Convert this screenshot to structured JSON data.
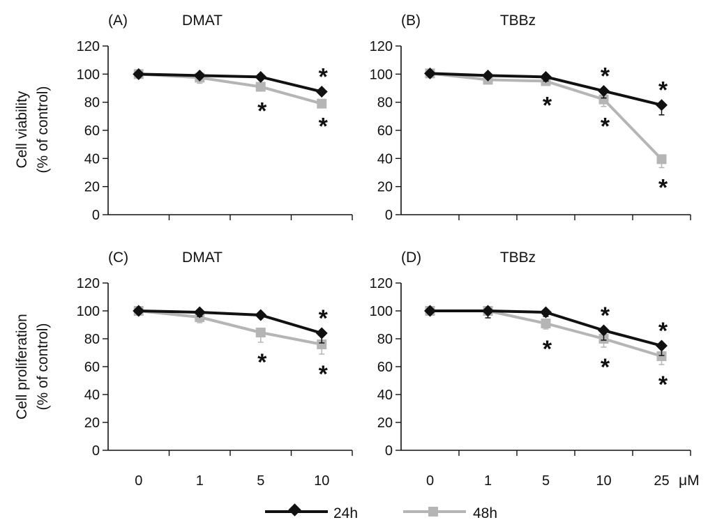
{
  "figure": {
    "y_axis_label_top": [
      "Cell viability",
      "(% of control)"
    ],
    "y_axis_label_bottom": [
      "Cell proliferation",
      "(% of control)"
    ],
    "x_unit": "μM",
    "legend": [
      "24h",
      "48h"
    ],
    "colors": {
      "24h": "#111111",
      "48h": "#b5b5b5"
    }
  },
  "chart_data": [
    {
      "panel": "(A)",
      "title": "DMAT",
      "type": "line",
      "categories": [
        "0",
        "1",
        "5",
        "10"
      ],
      "ylim": [
        0,
        120
      ],
      "yticks": [
        "0",
        "20",
        "40",
        "60",
        "80",
        "100",
        "120"
      ],
      "series": [
        {
          "name": "24h",
          "values": [
            100,
            99,
            98,
            87.5
          ],
          "errors": [
            0,
            2,
            2,
            1
          ],
          "stars": [
            "",
            "",
            "",
            "*"
          ]
        },
        {
          "name": "48h",
          "values": [
            100,
            97.5,
            91,
            79
          ],
          "errors": [
            0,
            4,
            3,
            2
          ],
          "stars": [
            "",
            "",
            "*",
            "*"
          ]
        }
      ]
    },
    {
      "panel": "(B)",
      "title": "TBBz",
      "type": "line",
      "categories": [
        "0",
        "1",
        "5",
        "10",
        "25"
      ],
      "ylim": [
        0,
        120
      ],
      "yticks": [
        "0",
        "20",
        "40",
        "60",
        "80",
        "100",
        "120"
      ],
      "series": [
        {
          "name": "24h",
          "values": [
            100.5,
            99,
            98,
            88,
            78
          ],
          "errors": [
            0,
            2,
            3,
            5,
            7
          ],
          "stars": [
            "",
            "",
            "",
            "*",
            "*"
          ]
        },
        {
          "name": "48h",
          "values": [
            100.5,
            96,
            95,
            82,
            39.5
          ],
          "errors": [
            0,
            3,
            3,
            5,
            6
          ],
          "stars": [
            "",
            "",
            "*",
            "*",
            "*"
          ]
        }
      ]
    },
    {
      "panel": "(C)",
      "title": "DMAT",
      "type": "line",
      "categories": [
        "0",
        "1",
        "5",
        "10"
      ],
      "ylim": [
        0,
        120
      ],
      "yticks": [
        "0",
        "20",
        "40",
        "60",
        "80",
        "100",
        "120"
      ],
      "series": [
        {
          "name": "24h",
          "values": [
            100,
            99,
            97,
            84
          ],
          "errors": [
            0,
            3,
            2,
            7
          ],
          "stars": [
            "",
            "",
            "",
            "*"
          ]
        },
        {
          "name": "48h",
          "values": [
            100,
            95.5,
            84.5,
            76
          ],
          "errors": [
            0,
            4,
            7,
            7
          ],
          "stars": [
            "",
            "",
            "*",
            "*"
          ]
        }
      ]
    },
    {
      "panel": "(D)",
      "title": "TBBz",
      "type": "line",
      "categories": [
        "0",
        "1",
        "5",
        "10",
        "25"
      ],
      "ylim": [
        0,
        120
      ],
      "yticks": [
        "0",
        "20",
        "40",
        "60",
        "80",
        "100",
        "120"
      ],
      "series": [
        {
          "name": "24h",
          "values": [
            100,
            100,
            99,
            86,
            75
          ],
          "errors": [
            0,
            5,
            3,
            7,
            7
          ],
          "stars": [
            "",
            "",
            "",
            "*",
            "*"
          ]
        },
        {
          "name": "48h",
          "values": [
            100,
            100,
            91,
            80,
            67.5
          ],
          "errors": [
            0,
            3,
            4,
            6,
            6
          ],
          "stars": [
            "",
            "",
            "*",
            "*",
            "*"
          ]
        }
      ]
    }
  ]
}
